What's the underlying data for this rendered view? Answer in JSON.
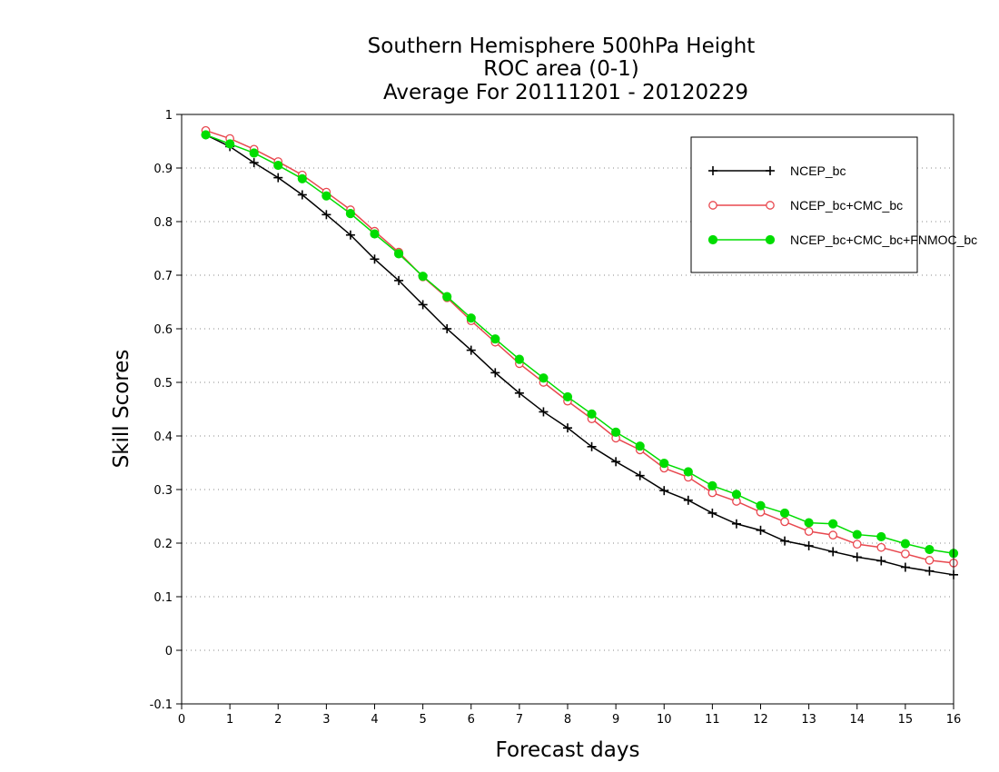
{
  "chart_data": {
    "type": "line",
    "title_lines": [
      "Southern Hemisphere 500hPa Height",
      "ROC area (0-1)",
      "Average For 20111201 - 20120229"
    ],
    "xlabel": "Forecast days",
    "ylabel": "Skill Scores",
    "xlim": [
      0,
      16
    ],
    "ylim": [
      -0.1,
      1
    ],
    "xticks": [
      "0",
      "1",
      "2",
      "3",
      "4",
      "5",
      "6",
      "7",
      "8",
      "9",
      "10",
      "11",
      "12",
      "13",
      "14",
      "15",
      "16"
    ],
    "yticks": [
      "1",
      "0.9",
      "0.8",
      "0.7",
      "0.6",
      "0.5",
      "0.4",
      "0.3",
      "0.2",
      "0.1",
      "0",
      "-0.1"
    ],
    "grid": "horizontal-dotted",
    "legend_position": "top-right",
    "x": [
      0.5,
      1,
      1.5,
      2,
      2.5,
      3,
      3.5,
      4,
      4.5,
      5,
      5.5,
      6,
      6.5,
      7,
      7.5,
      8,
      8.5,
      9,
      9.5,
      10,
      10.5,
      11,
      11.5,
      12,
      12.5,
      13,
      13.5,
      14,
      14.5,
      15,
      15.5,
      16
    ],
    "series": [
      {
        "name": "NCEP_bc",
        "color": "#000000",
        "marker": "plus",
        "values": [
          0.962,
          0.94,
          0.91,
          0.882,
          0.85,
          0.813,
          0.775,
          0.73,
          0.69,
          0.645,
          0.6,
          0.56,
          0.518,
          0.48,
          0.445,
          0.415,
          0.38,
          0.352,
          0.326,
          0.298,
          0.28,
          0.256,
          0.236,
          0.224,
          0.204,
          0.195,
          0.184,
          0.174,
          0.167,
          0.155,
          0.148,
          0.141
        ]
      },
      {
        "name": "NCEP_bc+CMC_bc",
        "color": "#e8484f",
        "marker": "open-circle",
        "values": [
          0.97,
          0.955,
          0.935,
          0.912,
          0.887,
          0.855,
          0.822,
          0.782,
          0.743,
          0.697,
          0.658,
          0.615,
          0.575,
          0.535,
          0.5,
          0.465,
          0.432,
          0.396,
          0.374,
          0.34,
          0.323,
          0.294,
          0.278,
          0.258,
          0.24,
          0.222,
          0.215,
          0.198,
          0.192,
          0.18,
          0.168,
          0.163
        ]
      },
      {
        "name": "NCEP_bc+CMC_bc+FNMOC_bc",
        "color": "#00dd00",
        "marker": "filled-circle",
        "values": [
          0.962,
          0.945,
          0.928,
          0.905,
          0.88,
          0.848,
          0.815,
          0.777,
          0.74,
          0.698,
          0.66,
          0.62,
          0.581,
          0.543,
          0.508,
          0.473,
          0.441,
          0.407,
          0.381,
          0.349,
          0.333,
          0.307,
          0.291,
          0.27,
          0.256,
          0.238,
          0.236,
          0.216,
          0.212,
          0.199,
          0.188,
          0.181
        ]
      }
    ]
  }
}
